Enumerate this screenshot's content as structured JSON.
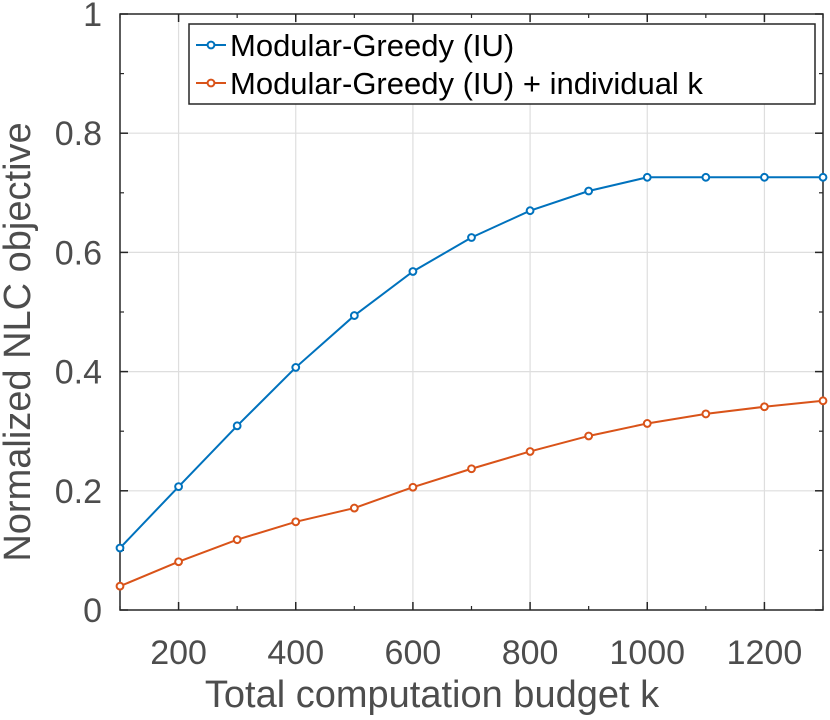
{
  "chart_data": {
    "type": "line",
    "title": "",
    "xlabel": "Total computation budget k",
    "ylabel": "Normalized NLC objective",
    "xlim": [
      100,
      1300
    ],
    "ylim": [
      0,
      1
    ],
    "grid": true,
    "legend_position": "top-right",
    "x": [
      100,
      200,
      300,
      400,
      500,
      600,
      700,
      800,
      900,
      1000,
      1100,
      1200,
      1300
    ],
    "x_ticks": [
      200,
      400,
      600,
      800,
      1000,
      1200
    ],
    "x_tick_labels": [
      "200",
      "400",
      "600",
      "800",
      "1000",
      "1200"
    ],
    "y_ticks": [
      0,
      0.2,
      0.4,
      0.6,
      0.8,
      1
    ],
    "y_tick_labels": [
      "0",
      "0.2",
      "0.4",
      "0.6",
      "0.8",
      "1"
    ],
    "series": [
      {
        "name": "Modular-Greedy (IU)",
        "color": "#0072BD",
        "values": [
          0.104,
          0.207,
          0.309,
          0.407,
          0.494,
          0.568,
          0.625,
          0.67,
          0.703,
          0.726,
          0.726,
          0.726,
          0.726
        ]
      },
      {
        "name": "Modular-Greedy (IU) + individual k",
        "color": "#D95319",
        "values": [
          0.04,
          0.081,
          0.118,
          0.148,
          0.171,
          0.206,
          0.237,
          0.266,
          0.292,
          0.313,
          0.329,
          0.341,
          0.351
        ]
      }
    ]
  }
}
